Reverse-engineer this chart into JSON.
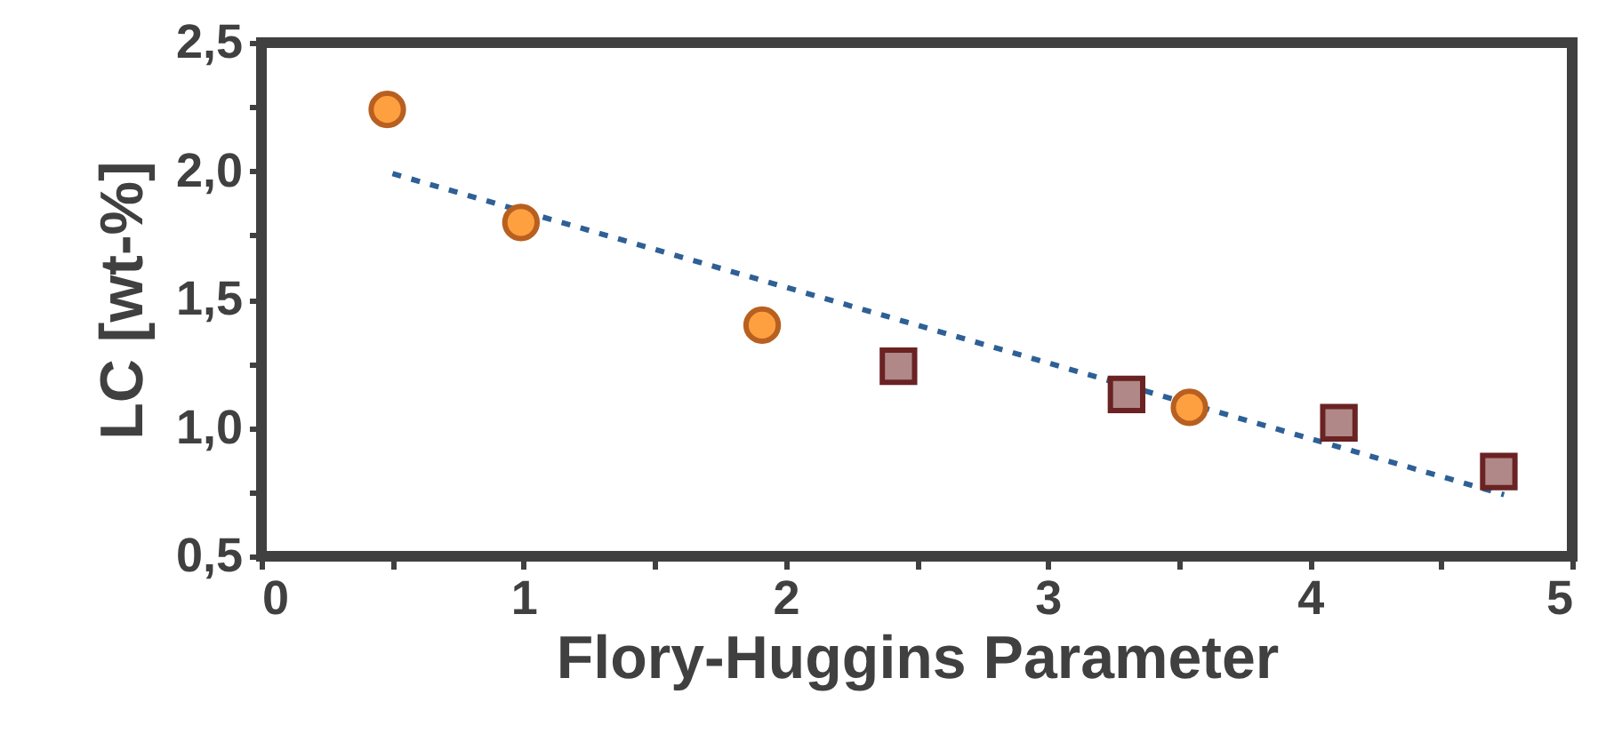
{
  "chart_data": {
    "type": "scatter",
    "xlabel": "Flory-Huggins Parameter",
    "ylabel": "LC [wt-%]",
    "xlim": [
      0,
      5
    ],
    "ylim": [
      0.5,
      2.5
    ],
    "xticks": [
      0,
      {
        "value": 0.5,
        "label": null
      },
      1,
      {
        "value": 1.5,
        "label": null
      },
      2,
      {
        "value": 2.5,
        "label": null
      },
      3,
      {
        "value": 3.5,
        "label": null
      },
      4,
      {
        "value": 4.5,
        "label": null
      },
      5
    ],
    "yticks": [
      {
        "value": 0.5,
        "label": "0,5"
      },
      {
        "value": 0.75,
        "label": null
      },
      {
        "value": 1.0,
        "label": "1,0"
      },
      {
        "value": 1.25,
        "label": null
      },
      {
        "value": 1.5,
        "label": "1,5"
      },
      {
        "value": 1.75,
        "label": null
      },
      {
        "value": 2.0,
        "label": "2,0"
      },
      {
        "value": 2.25,
        "label": null
      },
      {
        "value": 2.5,
        "label": "2,5"
      }
    ],
    "grid": false,
    "series": [
      {
        "type": "line",
        "color": "#2e6096",
        "line_style": "dotted",
        "marker": "none",
        "x": [
          0.5,
          4.74
        ],
        "values": [
          1.99,
          0.74
        ]
      },
      {
        "color": "#ffa040",
        "marker": "circle",
        "x": [
          0.48,
          0.99,
          1.91,
          3.54
        ],
        "values": [
          2.24,
          1.8,
          1.4,
          1.08
        ]
      },
      {
        "color": "#b08888",
        "marker": "square",
        "x": [
          2.43,
          3.3,
          4.11,
          4.72
        ],
        "values": [
          1.24,
          1.13,
          1.02,
          0.83
        ]
      }
    ]
  }
}
